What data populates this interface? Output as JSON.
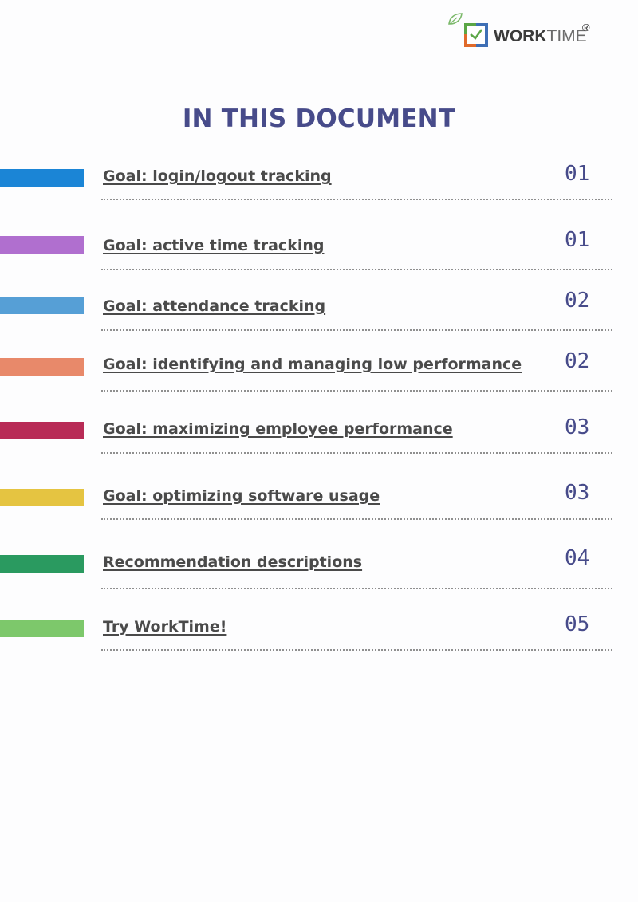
{
  "header": {
    "logo_bold": "WORK",
    "logo_light": "TIME",
    "logo_mark": "®",
    "brand_colors": {
      "green": "#5ba646",
      "blue": "#3e6fb5",
      "orange": "#e06a2b",
      "leaf": "#7cb96b"
    }
  },
  "page_title": "IN THIS DOCUMENT",
  "toc": [
    {
      "label": "Goal: login/logout tracking",
      "page": "01",
      "color": "#1b85d6"
    },
    {
      "label": "Goal: active time tracking",
      "page": "01",
      "color": "#b06fcf"
    },
    {
      "label": "Goal: attendance tracking",
      "page": "02",
      "color": "#569fd6"
    },
    {
      "label": "Goal: identifying and managing low performance",
      "page": "02",
      "color": "#e8896a"
    },
    {
      "label": "Goal: maximizing employee performance",
      "page": "03",
      "color": "#b82b56"
    },
    {
      "label": "Goal: optimizing software usage",
      "page": "03",
      "color": "#e5c441"
    },
    {
      "label": "Recommendation descriptions",
      "page": "04",
      "color": "#2a9a60"
    },
    {
      "label": "Try WorkTime!",
      "page": "05",
      "color": "#7dc86b"
    }
  ]
}
